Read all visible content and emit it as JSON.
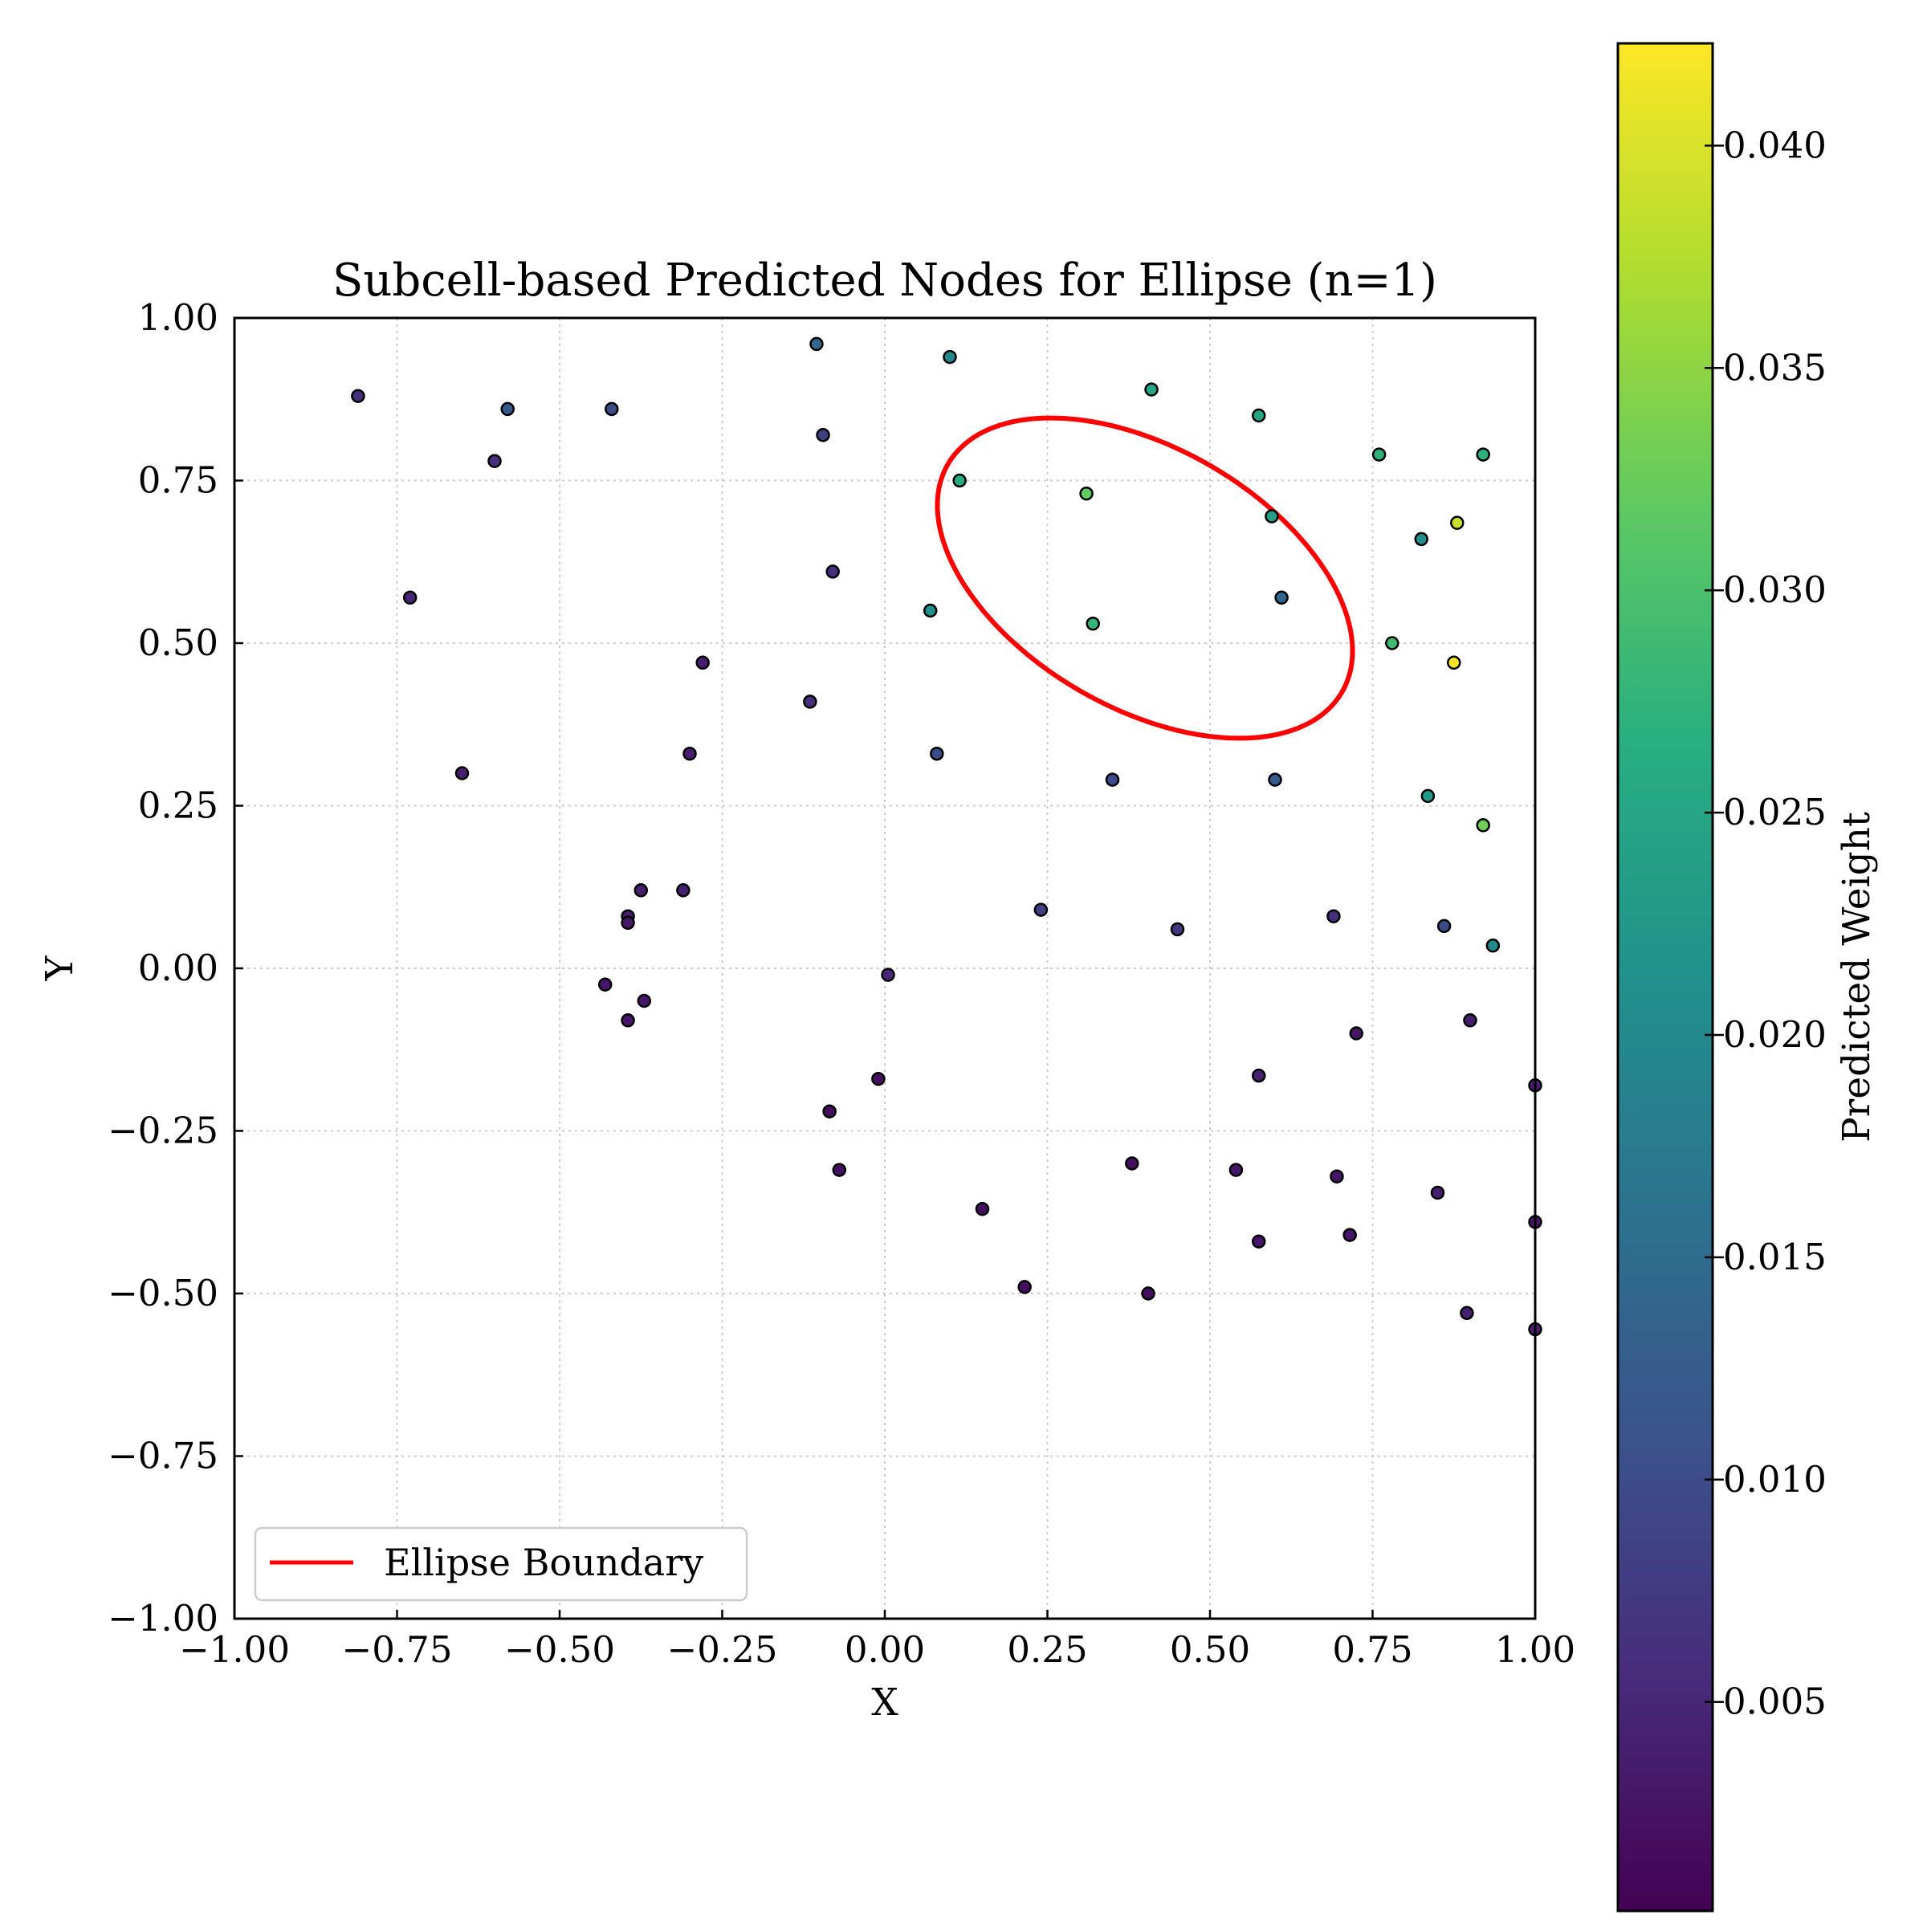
{
  "chart_data": {
    "type": "scatter",
    "title": "Subcell-based Predicted Nodes for Ellipse (n=1)",
    "xlabel": "X",
    "ylabel": "Y",
    "xlim": [
      -1.0,
      1.0
    ],
    "ylim": [
      -1.0,
      1.0
    ],
    "grid": true,
    "x_ticks": [
      "−1.00",
      "−0.75",
      "−0.50",
      "−0.25",
      "0.00",
      "0.25",
      "0.50",
      "0.75",
      "1.00"
    ],
    "y_ticks": [
      "−1.00",
      "−0.75",
      "−0.50",
      "−0.25",
      "0.00",
      "0.25",
      "0.50",
      "0.75",
      "1.00"
    ],
    "legend": {
      "placement": "lower-left",
      "entries": [
        {
          "label": "Ellipse Boundary",
          "color": "#ff0000"
        }
      ]
    },
    "ellipse": {
      "name": "Ellipse Boundary",
      "center": [
        0.4,
        0.6
      ],
      "semi_major": 0.35,
      "semi_minor": 0.2,
      "angle_deg": -30,
      "color": "#ff0000"
    },
    "colorbar": {
      "label": "Predicted Weight",
      "range": [
        0.0003,
        0.0423
      ],
      "tick_values": [
        0.005,
        0.01,
        0.015,
        0.02,
        0.025,
        0.03,
        0.035,
        0.04
      ],
      "ticks": [
        "0.005",
        "0.010",
        "0.015",
        "0.020",
        "0.025",
        "0.030",
        "0.035",
        "0.040"
      ],
      "colormap": "viridis"
    },
    "points": [
      {
        "x": -0.81,
        "y": 0.88,
        "w": 0.006
      },
      {
        "x": -0.73,
        "y": 0.57,
        "w": 0.005
      },
      {
        "x": -0.65,
        "y": 0.3,
        "w": 0.004
      },
      {
        "x": -0.6,
        "y": 0.78,
        "w": 0.006
      },
      {
        "x": -0.58,
        "y": 0.86,
        "w": 0.012
      },
      {
        "x": -0.42,
        "y": 0.86,
        "w": 0.01
      },
      {
        "x": -0.28,
        "y": 0.47,
        "w": 0.004
      },
      {
        "x": -0.3,
        "y": 0.33,
        "w": 0.004
      },
      {
        "x": -0.31,
        "y": 0.12,
        "w": 0.004
      },
      {
        "x": -0.375,
        "y": 0.12,
        "w": 0.004
      },
      {
        "x": -0.395,
        "y": 0.08,
        "w": 0.004
      },
      {
        "x": -0.395,
        "y": 0.07,
        "w": 0.003
      },
      {
        "x": -0.43,
        "y": -0.025,
        "w": 0.003
      },
      {
        "x": -0.37,
        "y": -0.05,
        "w": 0.003
      },
      {
        "x": -0.395,
        "y": -0.08,
        "w": 0.003
      },
      {
        "x": -0.105,
        "y": 0.96,
        "w": 0.014
      },
      {
        "x": -0.095,
        "y": 0.82,
        "w": 0.008
      },
      {
        "x": -0.08,
        "y": 0.61,
        "w": 0.006
      },
      {
        "x": -0.115,
        "y": 0.41,
        "w": 0.006
      },
      {
        "x": 0.005,
        "y": -0.01,
        "w": 0.005
      },
      {
        "x": -0.01,
        "y": -0.17,
        "w": 0.002
      },
      {
        "x": -0.085,
        "y": -0.22,
        "w": 0.002
      },
      {
        "x": -0.07,
        "y": -0.31,
        "w": 0.002
      },
      {
        "x": 0.1,
        "y": 0.94,
        "w": 0.02
      },
      {
        "x": 0.115,
        "y": 0.75,
        "w": 0.026
      },
      {
        "x": 0.07,
        "y": 0.55,
        "w": 0.021
      },
      {
        "x": 0.08,
        "y": 0.33,
        "w": 0.01
      },
      {
        "x": 0.24,
        "y": 0.09,
        "w": 0.008
      },
      {
        "x": 0.15,
        "y": -0.37,
        "w": 0.002
      },
      {
        "x": 0.215,
        "y": -0.49,
        "w": 0.002
      },
      {
        "x": 0.31,
        "y": 0.73,
        "w": 0.032
      },
      {
        "x": 0.32,
        "y": 0.53,
        "w": 0.028
      },
      {
        "x": 0.35,
        "y": 0.29,
        "w": 0.01
      },
      {
        "x": 0.41,
        "y": 0.89,
        "w": 0.025
      },
      {
        "x": 0.45,
        "y": 0.06,
        "w": 0.007
      },
      {
        "x": 0.38,
        "y": -0.3,
        "w": 0.002
      },
      {
        "x": 0.405,
        "y": -0.5,
        "w": 0.002
      },
      {
        "x": 0.575,
        "y": 0.85,
        "w": 0.025
      },
      {
        "x": 0.595,
        "y": 0.695,
        "w": 0.024
      },
      {
        "x": 0.61,
        "y": 0.57,
        "w": 0.014
      },
      {
        "x": 0.6,
        "y": 0.29,
        "w": 0.012
      },
      {
        "x": 0.575,
        "y": -0.165,
        "w": 0.004
      },
      {
        "x": 0.54,
        "y": -0.31,
        "w": 0.003
      },
      {
        "x": 0.575,
        "y": -0.42,
        "w": 0.003
      },
      {
        "x": 0.69,
        "y": 0.08,
        "w": 0.006
      },
      {
        "x": 0.725,
        "y": -0.1,
        "w": 0.003
      },
      {
        "x": 0.695,
        "y": -0.32,
        "w": 0.003
      },
      {
        "x": 0.715,
        "y": -0.41,
        "w": 0.003
      },
      {
        "x": 0.76,
        "y": 0.79,
        "w": 0.027
      },
      {
        "x": 0.78,
        "y": 0.5,
        "w": 0.029
      },
      {
        "x": 0.825,
        "y": 0.66,
        "w": 0.021
      },
      {
        "x": 0.88,
        "y": 0.685,
        "w": 0.039
      },
      {
        "x": 0.875,
        "y": 0.47,
        "w": 0.042
      },
      {
        "x": 0.835,
        "y": 0.265,
        "w": 0.023
      },
      {
        "x": 0.92,
        "y": 0.79,
        "w": 0.027
      },
      {
        "x": 0.92,
        "y": 0.22,
        "w": 0.033
      },
      {
        "x": 0.86,
        "y": 0.065,
        "w": 0.01
      },
      {
        "x": 0.935,
        "y": 0.035,
        "w": 0.02
      },
      {
        "x": 0.9,
        "y": -0.08,
        "w": 0.004
      },
      {
        "x": 0.85,
        "y": -0.345,
        "w": 0.004
      },
      {
        "x": 0.895,
        "y": -0.53,
        "w": 0.004
      },
      {
        "x": 1.0,
        "y": -0.18,
        "w": 0.004
      },
      {
        "x": 1.0,
        "y": -0.39,
        "w": 0.003
      },
      {
        "x": 1.0,
        "y": -0.555,
        "w": 0.004
      }
    ]
  }
}
